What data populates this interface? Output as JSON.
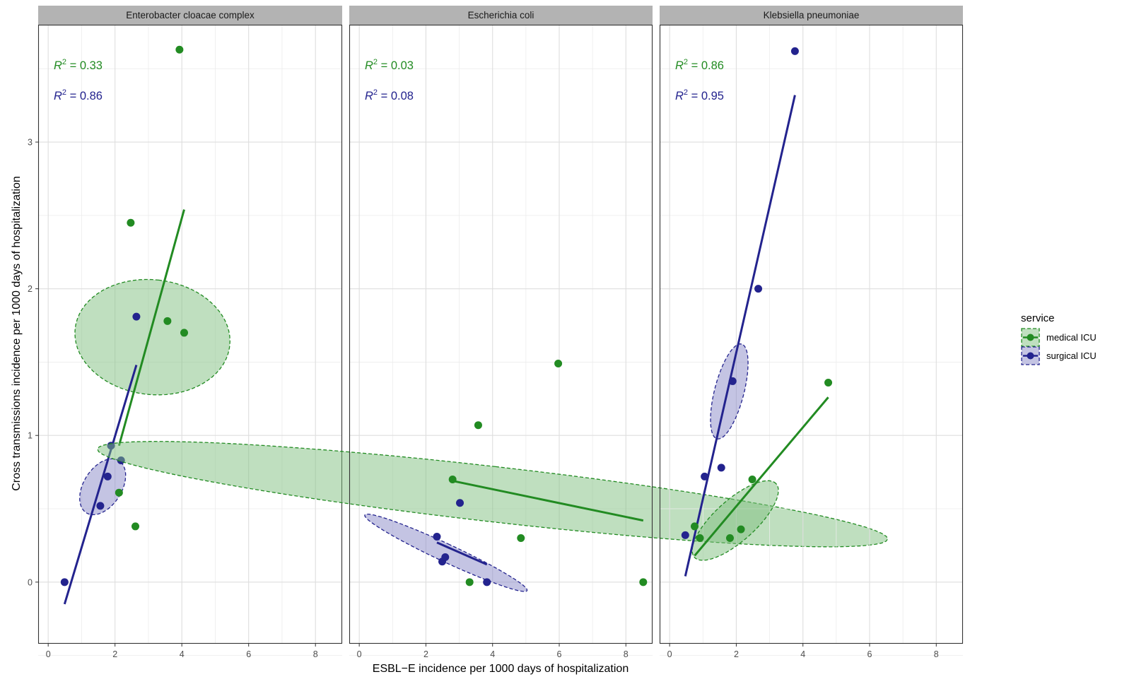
{
  "chart_data": {
    "type": "scatter",
    "xlabel": "ESBL−E incidence per 1000 days of hospitalization",
    "ylabel": "Cross transmissions incidence per 1000 days of hospitalization",
    "xlim": [
      -0.3,
      8.8
    ],
    "ylim": [
      -0.42,
      3.8
    ],
    "x_ticks": [
      0,
      2,
      4,
      6,
      8
    ],
    "y_ticks": [
      0,
      1,
      2,
      3
    ],
    "grid": true,
    "legend": {
      "title": "service",
      "placement": "right",
      "items": [
        {
          "label": "medical ICU",
          "color": "#228B22",
          "fill": "#7FBF7F"
        },
        {
          "label": "surgical ICU",
          "color": "#23238E",
          "fill": "#8A8AC8"
        }
      ]
    },
    "facets": [
      {
        "title": "Enterobacter cloacae complex",
        "series": [
          {
            "name": "medical ICU",
            "color": "#228B22",
            "points": [
              [
                2.12,
                0.61
              ],
              [
                2.47,
                2.45
              ],
              [
                2.61,
                0.38
              ],
              [
                3.57,
                1.78
              ],
              [
                3.93,
                3.63
              ],
              [
                4.07,
                1.7
              ]
            ],
            "r2": "0.33",
            "fit": [
              [
                2.12,
                0.93
              ],
              [
                4.07,
                2.54
              ]
            ],
            "ellipse": {
              "cx": 3.12,
              "cy": 1.67,
              "rx": 1.72,
              "ry": 0.53,
              "angle_deg": 83.5
            }
          },
          {
            "name": "surgical ICU",
            "color": "#23238E",
            "points": [
              [
                0.49,
                0.0
              ],
              [
                1.56,
                0.52
              ],
              [
                1.78,
                0.72
              ],
              [
                1.88,
                0.93
              ],
              [
                2.18,
                0.83
              ],
              [
                2.64,
                1.81
              ]
            ],
            "r2": "0.86",
            "fit": [
              [
                0.49,
                -0.15
              ],
              [
                2.64,
                1.48
              ]
            ],
            "ellipse": {
              "cx": 1.63,
              "cy": 0.65,
              "rx": 0.92,
              "ry": 0.13,
              "angle_deg": 58
            }
          }
        ]
      },
      {
        "title": "Escherichia coli",
        "series": [
          {
            "name": "medical ICU",
            "color": "#228B22",
            "points": [
              [
                2.8,
                0.7
              ],
              [
                3.31,
                0.0
              ],
              [
                3.57,
                1.07
              ],
              [
                4.85,
                0.3
              ],
              [
                5.97,
                1.49
              ],
              [
                8.52,
                0.0
              ]
            ],
            "r2": "0.03",
            "fit": [
              [
                2.8,
                0.69
              ],
              [
                8.52,
                0.42
              ]
            ],
            "ellipse": {
              "cx": 4.0,
              "cy": 0.6,
              "rx": 0.83,
              "ry": 2.71,
              "angle_deg": 83.5
            }
          },
          {
            "name": "surgical ICU",
            "color": "#23238E",
            "points": [
              [
                2.33,
                0.31
              ],
              [
                2.49,
                0.14
              ],
              [
                2.58,
                0.17
              ],
              [
                3.02,
                0.54
              ],
              [
                3.83,
                0.0
              ]
            ],
            "r2": "0.08",
            "fit": [
              [
                2.33,
                0.27
              ],
              [
                3.83,
                0.12
              ]
            ],
            "ellipse": {
              "cx": 2.6,
              "cy": 0.2,
              "rx": 0.27,
              "ry": 0.61,
              "angle_deg": 65
            }
          }
        ]
      },
      {
        "title": "Klebsiella pneumoniae",
        "series": [
          {
            "name": "medical ICU",
            "color": "#228B22",
            "points": [
              [
                0.75,
                0.38
              ],
              [
                0.91,
                0.3
              ],
              [
                1.81,
                0.3
              ],
              [
                2.14,
                0.36
              ],
              [
                2.48,
                0.7
              ],
              [
                4.76,
                1.36
              ]
            ],
            "r2": "0.86",
            "fit": [
              [
                0.75,
                0.18
              ],
              [
                4.76,
                1.26
              ]
            ],
            "ellipse": {
              "cx": 1.97,
              "cy": 0.42,
              "rx": 1.65,
              "ry": 0.14,
              "angle_deg": 42
            }
          },
          {
            "name": "surgical ICU",
            "color": "#23238E",
            "points": [
              [
                0.47,
                0.32
              ],
              [
                1.05,
                0.72
              ],
              [
                1.55,
                0.78
              ],
              [
                1.89,
                1.37
              ],
              [
                2.66,
                2.0
              ],
              [
                3.76,
                3.62
              ]
            ],
            "r2": "0.95",
            "fit": [
              [
                0.47,
                0.04
              ],
              [
                3.76,
                3.32
              ]
            ],
            "ellipse": {
              "cx": 1.79,
              "cy": 1.3,
              "rx": 1.47,
              "ry": 0.1,
              "angle_deg": 75.5
            }
          }
        ]
      }
    ]
  }
}
